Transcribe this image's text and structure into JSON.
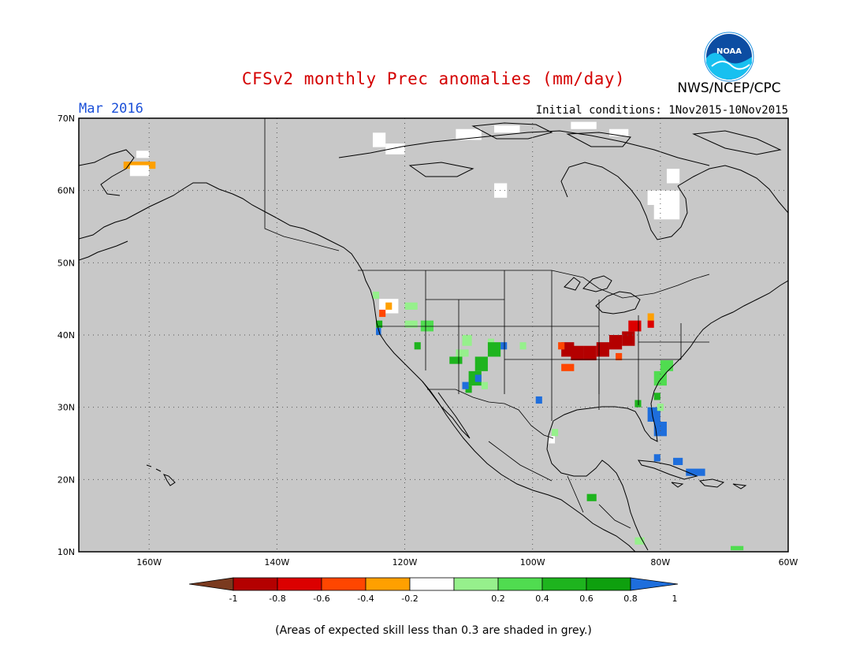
{
  "title": "CFSv2 monthly Prec anomalies (mm/day)",
  "agency": "NWS/NCEP/CPC",
  "logo_text": "NOAA",
  "valid_month": "Mar 2016",
  "initial_conditions": "Initial conditions: 1Nov2015-10Nov2015",
  "skill_note": "(Areas of expected skill less than 0.3 are shaded in grey.)",
  "map": {
    "lon_range": [
      -171,
      -60
    ],
    "lat_range": [
      10,
      70
    ],
    "lat_ticks": [
      {
        "value": 70,
        "label": "70N"
      },
      {
        "value": 60,
        "label": "60N"
      },
      {
        "value": 50,
        "label": "50N"
      },
      {
        "value": 40,
        "label": "40N"
      },
      {
        "value": 30,
        "label": "30N"
      },
      {
        "value": 20,
        "label": "20N"
      },
      {
        "value": 10,
        "label": "10N"
      }
    ],
    "lon_ticks": [
      {
        "value": -160,
        "label": "160W"
      },
      {
        "value": -140,
        "label": "140W"
      },
      {
        "value": -120,
        "label": "120W"
      },
      {
        "value": -100,
        "label": "100W"
      },
      {
        "value": -80,
        "label": "80W"
      },
      {
        "value": -60,
        "label": "60W"
      }
    ],
    "grid_lines": true,
    "background_color": "#c8c8c8",
    "anomaly_cells": [
      {
        "lon": -164,
        "lat": 63,
        "w": 5,
        "h": 1,
        "cls": -0.3
      },
      {
        "lon": -163,
        "lat": 62,
        "w": 3,
        "h": 1.5,
        "cls": 0
      },
      {
        "lon": -162,
        "lat": 64.5,
        "w": 2,
        "h": 1,
        "cls": 0
      },
      {
        "lon": -125,
        "lat": 66,
        "w": 2,
        "h": 2,
        "cls": 0
      },
      {
        "lon": -123,
        "lat": 65,
        "w": 3,
        "h": 1.5,
        "cls": 0
      },
      {
        "lon": -112,
        "lat": 67,
        "w": 4,
        "h": 1.5,
        "cls": 0
      },
      {
        "lon": -106,
        "lat": 68,
        "w": 4,
        "h": 1,
        "cls": 0
      },
      {
        "lon": -94,
        "lat": 68.5,
        "w": 4,
        "h": 1,
        "cls": 0
      },
      {
        "lon": -88,
        "lat": 67.5,
        "w": 3,
        "h": 1,
        "cls": 0
      },
      {
        "lon": -106,
        "lat": 59,
        "w": 2,
        "h": 2,
        "cls": 0
      },
      {
        "lon": -82,
        "lat": 58,
        "w": 5,
        "h": 2,
        "cls": 0
      },
      {
        "lon": -79,
        "lat": 61,
        "w": 2,
        "h": 2,
        "cls": 0
      },
      {
        "lon": -81,
        "lat": 56,
        "w": 4,
        "h": 2,
        "cls": 0
      },
      {
        "lon": -125,
        "lat": 45,
        "w": 1,
        "h": 1,
        "cls": 0.3
      },
      {
        "lon": -124,
        "lat": 43,
        "w": 3,
        "h": 2,
        "cls": 0
      },
      {
        "lon": -123,
        "lat": 43.5,
        "w": 1,
        "h": 1,
        "cls": -0.3
      },
      {
        "lon": -124,
        "lat": 42.5,
        "w": 1,
        "h": 1,
        "cls": -0.5
      },
      {
        "lon": -124.5,
        "lat": 41,
        "w": 1,
        "h": 1,
        "cls": 0.7
      },
      {
        "lon": -124.5,
        "lat": 40,
        "w": 0.8,
        "h": 1,
        "cls": 1
      },
      {
        "lon": -120,
        "lat": 43.5,
        "w": 2,
        "h": 1,
        "cls": 0.3
      },
      {
        "lon": -120,
        "lat": 41,
        "w": 2,
        "h": 1,
        "cls": 0.3
      },
      {
        "lon": -117.5,
        "lat": 40.5,
        "w": 2,
        "h": 1.5,
        "cls": 0.5
      },
      {
        "lon": -118.5,
        "lat": 38,
        "w": 1,
        "h": 1,
        "cls": 0.7
      },
      {
        "lon": -113,
        "lat": 36,
        "w": 2,
        "h": 1,
        "cls": 0.7
      },
      {
        "lon": -112,
        "lat": 37,
        "w": 2,
        "h": 1,
        "cls": 0.3
      },
      {
        "lon": -111,
        "lat": 38.5,
        "w": 1.5,
        "h": 1.5,
        "cls": 0.3
      },
      {
        "lon": -107,
        "lat": 38.5,
        "w": 1,
        "h": 1,
        "cls": 0.3
      },
      {
        "lon": -107,
        "lat": 37,
        "w": 2,
        "h": 2,
        "cls": 0.7
      },
      {
        "lon": -109,
        "lat": 35,
        "w": 2,
        "h": 2,
        "cls": 0.7
      },
      {
        "lon": -110,
        "lat": 33,
        "w": 2,
        "h": 2,
        "cls": 0.7
      },
      {
        "lon": -108,
        "lat": 32.5,
        "w": 1,
        "h": 1,
        "cls": 0.3
      },
      {
        "lon": -110.5,
        "lat": 32,
        "w": 1,
        "h": 1,
        "cls": 0.7
      },
      {
        "lon": -109,
        "lat": 33.5,
        "w": 1,
        "h": 1,
        "cls": 1
      },
      {
        "lon": -111,
        "lat": 32.5,
        "w": 1,
        "h": 1,
        "cls": 1
      },
      {
        "lon": -105,
        "lat": 38,
        "w": 1,
        "h": 1,
        "cls": 1
      },
      {
        "lon": -102,
        "lat": 38,
        "w": 1,
        "h": 1,
        "cls": 0.3
      },
      {
        "lon": -99.5,
        "lat": 30.5,
        "w": 1,
        "h": 1,
        "cls": 1
      },
      {
        "lon": -95.5,
        "lat": 37,
        "w": 2,
        "h": 2,
        "cls": -0.9
      },
      {
        "lon": -94,
        "lat": 36.5,
        "w": 2,
        "h": 2,
        "cls": -0.9
      },
      {
        "lon": -92,
        "lat": 36.5,
        "w": 2,
        "h": 2,
        "cls": -0.9
      },
      {
        "lon": -90,
        "lat": 37,
        "w": 2,
        "h": 2,
        "cls": -0.9
      },
      {
        "lon": -88,
        "lat": 38,
        "w": 2,
        "h": 2,
        "cls": -0.9
      },
      {
        "lon": -86,
        "lat": 38.5,
        "w": 2,
        "h": 2,
        "cls": -0.9
      },
      {
        "lon": -85,
        "lat": 40.5,
        "w": 2,
        "h": 1.5,
        "cls": -0.7
      },
      {
        "lon": -96,
        "lat": 38,
        "w": 1,
        "h": 1,
        "cls": -0.5
      },
      {
        "lon": -95.5,
        "lat": 35,
        "w": 2,
        "h": 1,
        "cls": -0.5
      },
      {
        "lon": -87,
        "lat": 36.5,
        "w": 1,
        "h": 1,
        "cls": -0.5
      },
      {
        "lon": -82,
        "lat": 42,
        "w": 1,
        "h": 1,
        "cls": -0.3
      },
      {
        "lon": -82,
        "lat": 41,
        "w": 1,
        "h": 1,
        "cls": -0.7
      },
      {
        "lon": -80,
        "lat": 35,
        "w": 2,
        "h": 1.5,
        "cls": 0.5
      },
      {
        "lon": -81,
        "lat": 33,
        "w": 2,
        "h": 2,
        "cls": 0.5
      },
      {
        "lon": -81,
        "lat": 31,
        "w": 1,
        "h": 1,
        "cls": 0.7
      },
      {
        "lon": -82,
        "lat": 28,
        "w": 2,
        "h": 2,
        "cls": 1
      },
      {
        "lon": -81,
        "lat": 26,
        "w": 2,
        "h": 2,
        "cls": 1
      },
      {
        "lon": -80.5,
        "lat": 29.5,
        "w": 1,
        "h": 1,
        "cls": 0.3
      },
      {
        "lon": -84,
        "lat": 30,
        "w": 1,
        "h": 1,
        "cls": 0.7
      },
      {
        "lon": -81,
        "lat": 22.5,
        "w": 1,
        "h": 1,
        "cls": 1
      },
      {
        "lon": -78,
        "lat": 22,
        "w": 1.5,
        "h": 1,
        "cls": 1
      },
      {
        "lon": -76,
        "lat": 20.5,
        "w": 3,
        "h": 1,
        "cls": 1
      },
      {
        "lon": -97,
        "lat": 26,
        "w": 1,
        "h": 1,
        "cls": 0.3
      },
      {
        "lon": -97.5,
        "lat": 25,
        "w": 1,
        "h": 1,
        "cls": 0
      },
      {
        "lon": -91.5,
        "lat": 17,
        "w": 1.5,
        "h": 1,
        "cls": 0.7
      },
      {
        "lon": -84,
        "lat": 11,
        "w": 1.5,
        "h": 1,
        "cls": 0.3
      },
      {
        "lon": -69,
        "lat": 10.2,
        "w": 2,
        "h": 0.6,
        "cls": 0.5
      }
    ]
  },
  "colorbar": {
    "bins": [
      {
        "color": "#7a3a1f"
      },
      {
        "color": "#b40000"
      },
      {
        "color": "#dc0000"
      },
      {
        "color": "#ff4600"
      },
      {
        "color": "#ffa000"
      },
      {
        "color": "#ffffff"
      },
      {
        "color": "#96f08c"
      },
      {
        "color": "#50dc50"
      },
      {
        "color": "#1eb41e"
      },
      {
        "color": "#0ea00e"
      },
      {
        "color": "#1e6edc"
      }
    ],
    "labels": [
      "-1",
      "-0.8",
      "-0.6",
      "-0.4",
      "-0.2",
      "0.2",
      "0.4",
      "0.6",
      "0.8",
      "1"
    ]
  }
}
